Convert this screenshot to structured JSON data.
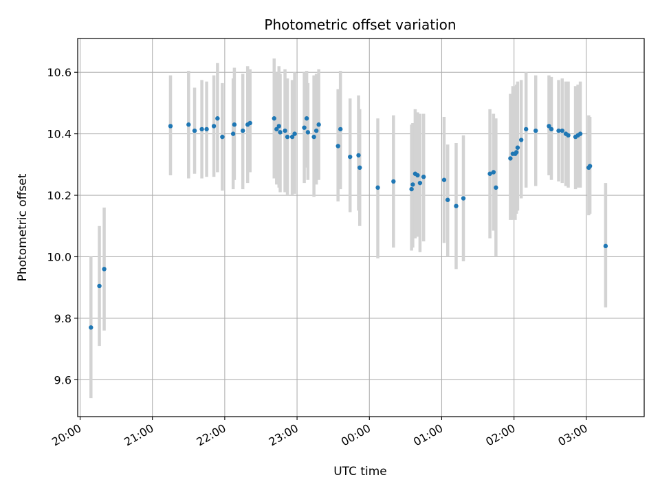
{
  "chart_data": {
    "type": "scatter",
    "title": "Photometric offset variation",
    "xlabel": "UTC time",
    "ylabel": "Photometric offset",
    "x_tick_labels": [
      "20:00",
      "21:00",
      "22:00",
      "23:00",
      "00:00",
      "01:00",
      "02:00",
      "03:00"
    ],
    "y_tick_labels": [
      "9.6",
      "9.8",
      "10.0",
      "10.2",
      "10.4",
      "10.6"
    ],
    "y_ticks": [
      9.6,
      9.8,
      10.0,
      10.2,
      10.4,
      10.6
    ],
    "ylim": [
      9.48,
      10.71
    ],
    "xlim": [
      "19:58",
      "03:48"
    ],
    "grid": true,
    "colors": {
      "marker": "#1f77b4",
      "errorbar": "#d3d3d3",
      "grid": "#b0b0b0"
    },
    "points": [
      {
        "x": "20:09",
        "y": 9.77,
        "ylo": 9.54,
        "yhi": 10.0
      },
      {
        "x": "20:16",
        "y": 9.905,
        "ylo": 9.71,
        "yhi": 10.1
      },
      {
        "x": "20:20",
        "y": 9.96,
        "ylo": 9.76,
        "yhi": 10.16
      },
      {
        "x": "21:15",
        "y": 10.425,
        "ylo": 10.265,
        "yhi": 10.59
      },
      {
        "x": "21:30",
        "y": 10.43,
        "ylo": 10.255,
        "yhi": 10.605
      },
      {
        "x": "21:35",
        "y": 10.41,
        "ylo": 10.27,
        "yhi": 10.55
      },
      {
        "x": "21:41",
        "y": 10.415,
        "ylo": 10.255,
        "yhi": 10.575
      },
      {
        "x": "21:45",
        "y": 10.415,
        "ylo": 10.26,
        "yhi": 10.57
      },
      {
        "x": "21:51",
        "y": 10.425,
        "ylo": 10.26,
        "yhi": 10.59
      },
      {
        "x": "21:54",
        "y": 10.45,
        "ylo": 10.275,
        "yhi": 10.63
      },
      {
        "x": "21:58",
        "y": 10.39,
        "ylo": 10.215,
        "yhi": 10.565
      },
      {
        "x": "22:07",
        "y": 10.4,
        "ylo": 10.22,
        "yhi": 10.58
      },
      {
        "x": "22:08",
        "y": 10.43,
        "ylo": 10.25,
        "yhi": 10.615
      },
      {
        "x": "22:15",
        "y": 10.41,
        "ylo": 10.22,
        "yhi": 10.595
      },
      {
        "x": "22:19",
        "y": 10.43,
        "ylo": 10.24,
        "yhi": 10.62
      },
      {
        "x": "22:21",
        "y": 10.435,
        "ylo": 10.275,
        "yhi": 10.61
      },
      {
        "x": "22:41",
        "y": 10.45,
        "ylo": 10.255,
        "yhi": 10.645
      },
      {
        "x": "22:43",
        "y": 10.415,
        "ylo": 10.235,
        "yhi": 10.6
      },
      {
        "x": "22:45",
        "y": 10.425,
        "ylo": 10.225,
        "yhi": 10.62
      },
      {
        "x": "22:46",
        "y": 10.405,
        "ylo": 10.21,
        "yhi": 10.595
      },
      {
        "x": "22:50",
        "y": 10.41,
        "ylo": 10.21,
        "yhi": 10.61
      },
      {
        "x": "22:52",
        "y": 10.39,
        "ylo": 10.2,
        "yhi": 10.58
      },
      {
        "x": "22:56",
        "y": 10.39,
        "ylo": 10.2,
        "yhi": 10.575
      },
      {
        "x": "22:58",
        "y": 10.4,
        "ylo": 10.205,
        "yhi": 10.6
      },
      {
        "x": "23:06",
        "y": 10.42,
        "ylo": 10.24,
        "yhi": 10.6
      },
      {
        "x": "23:08",
        "y": 10.45,
        "ylo": 10.29,
        "yhi": 10.605
      },
      {
        "x": "23:09",
        "y": 10.405,
        "ylo": 10.25,
        "yhi": 10.565
      },
      {
        "x": "23:14",
        "y": 10.39,
        "ylo": 10.195,
        "yhi": 10.59
      },
      {
        "x": "23:16",
        "y": 10.41,
        "ylo": 10.235,
        "yhi": 10.595
      },
      {
        "x": "23:18",
        "y": 10.43,
        "ylo": 10.25,
        "yhi": 10.61
      },
      {
        "x": "23:34",
        "y": 10.36,
        "ylo": 10.18,
        "yhi": 10.545
      },
      {
        "x": "23:36",
        "y": 10.415,
        "ylo": 10.22,
        "yhi": 10.605
      },
      {
        "x": "23:44",
        "y": 10.325,
        "ylo": 10.145,
        "yhi": 10.515
      },
      {
        "x": "23:51",
        "y": 10.33,
        "ylo": 10.15,
        "yhi": 10.525
      },
      {
        "x": "23:52",
        "y": 10.29,
        "ylo": 10.1,
        "yhi": 10.48
      },
      {
        "x": "00:07",
        "y": 10.225,
        "ylo": 9.995,
        "yhi": 10.45
      },
      {
        "x": "00:20",
        "y": 10.245,
        "ylo": 10.03,
        "yhi": 10.46
      },
      {
        "x": "00:35",
        "y": 10.22,
        "ylo": 10.02,
        "yhi": 10.43
      },
      {
        "x": "00:36",
        "y": 10.235,
        "ylo": 10.03,
        "yhi": 10.435
      },
      {
        "x": "00:38",
        "y": 10.27,
        "ylo": 10.06,
        "yhi": 10.48
      },
      {
        "x": "00:40",
        "y": 10.265,
        "ylo": 10.065,
        "yhi": 10.47
      },
      {
        "x": "00:42",
        "y": 10.24,
        "ylo": 10.015,
        "yhi": 10.465
      },
      {
        "x": "00:45",
        "y": 10.26,
        "ylo": 10.05,
        "yhi": 10.465
      },
      {
        "x": "01:02",
        "y": 10.25,
        "ylo": 10.045,
        "yhi": 10.455
      },
      {
        "x": "01:05",
        "y": 10.185,
        "ylo": 10.0,
        "yhi": 10.365
      },
      {
        "x": "01:12",
        "y": 10.165,
        "ylo": 9.96,
        "yhi": 10.37
      },
      {
        "x": "01:18",
        "y": 10.19,
        "ylo": 9.985,
        "yhi": 10.395
      },
      {
        "x": "01:40",
        "y": 10.27,
        "ylo": 10.06,
        "yhi": 10.48
      },
      {
        "x": "01:43",
        "y": 10.275,
        "ylo": 10.085,
        "yhi": 10.465
      },
      {
        "x": "01:45",
        "y": 10.225,
        "ylo": 10.0,
        "yhi": 10.45
      },
      {
        "x": "01:57",
        "y": 10.32,
        "ylo": 10.12,
        "yhi": 10.53
      },
      {
        "x": "01:59",
        "y": 10.335,
        "ylo": 10.12,
        "yhi": 10.555
      },
      {
        "x": "02:01",
        "y": 10.335,
        "ylo": 10.12,
        "yhi": 10.555
      },
      {
        "x": "02:02",
        "y": 10.34,
        "ylo": 10.14,
        "yhi": 10.56
      },
      {
        "x": "02:03",
        "y": 10.355,
        "ylo": 10.15,
        "yhi": 10.57
      },
      {
        "x": "02:06",
        "y": 10.38,
        "ylo": 10.19,
        "yhi": 10.575
      },
      {
        "x": "02:10",
        "y": 10.415,
        "ylo": 10.225,
        "yhi": 10.6
      },
      {
        "x": "02:18",
        "y": 10.41,
        "ylo": 10.23,
        "yhi": 10.59
      },
      {
        "x": "02:29",
        "y": 10.425,
        "ylo": 10.265,
        "yhi": 10.59
      },
      {
        "x": "02:31",
        "y": 10.415,
        "ylo": 10.25,
        "yhi": 10.585
      },
      {
        "x": "02:37",
        "y": 10.41,
        "ylo": 10.245,
        "yhi": 10.575
      },
      {
        "x": "02:40",
        "y": 10.41,
        "ylo": 10.24,
        "yhi": 10.58
      },
      {
        "x": "02:43",
        "y": 10.4,
        "ylo": 10.23,
        "yhi": 10.57
      },
      {
        "x": "02:45",
        "y": 10.395,
        "ylo": 10.225,
        "yhi": 10.57
      },
      {
        "x": "02:51",
        "y": 10.39,
        "ylo": 10.22,
        "yhi": 10.555
      },
      {
        "x": "02:53",
        "y": 10.395,
        "ylo": 10.225,
        "yhi": 10.56
      },
      {
        "x": "02:55",
        "y": 10.4,
        "ylo": 10.225,
        "yhi": 10.57
      },
      {
        "x": "03:02",
        "y": 10.29,
        "ylo": 10.135,
        "yhi": 10.46
      },
      {
        "x": "03:03",
        "y": 10.295,
        "ylo": 10.14,
        "yhi": 10.455
      },
      {
        "x": "03:16",
        "y": 10.035,
        "ylo": 9.835,
        "yhi": 10.24
      }
    ]
  }
}
